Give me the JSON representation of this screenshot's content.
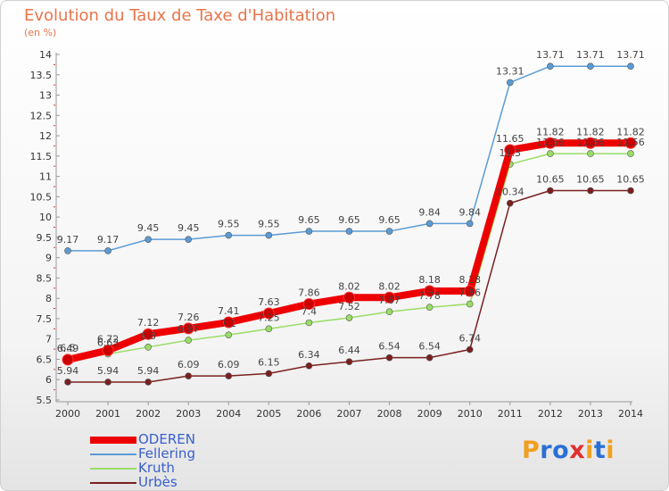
{
  "title": "Evolution du Taux de Taxe d'Habitation",
  "unit_label": "(en %)",
  "logo": {
    "text": "Proxiti",
    "letters": [
      "P",
      "r",
      "o",
      "x",
      "i",
      "t",
      "i"
    ],
    "colors": [
      "#f0a020",
      "#2b6fd6",
      "#2b6fd6",
      "#e03030",
      "#f0a020",
      "#2b6fd6",
      "#f0a020"
    ]
  },
  "chart_data": {
    "type": "line",
    "x": [
      "2000",
      "2001",
      "2002",
      "2003",
      "2004",
      "2005",
      "2006",
      "2007",
      "2008",
      "2009",
      "2010",
      "2011",
      "2012",
      "2013",
      "2014"
    ],
    "ylim": [
      5.5,
      14
    ],
    "yticks": [
      "5.5",
      "6",
      "6.5",
      "7",
      "7.5",
      "8",
      "8.5",
      "9",
      "9.5",
      "10",
      "10.5",
      "11",
      "11.5",
      "12",
      "12.5",
      "13",
      "13.5",
      "14"
    ],
    "grid": false,
    "legend_position": "bottom-left",
    "series": [
      {
        "name": "ODEREN",
        "color": "#ee0000",
        "values": [
          6.49,
          6.72,
          7.12,
          7.26,
          7.41,
          7.63,
          7.86,
          8.02,
          8.02,
          8.18,
          8.18,
          11.65,
          11.82,
          11.82,
          11.82
        ],
        "labels": [
          "6.49",
          "6.72",
          "7.12",
          "7.26",
          "7.41",
          "7.63",
          "7.86",
          "8.02",
          "8.02",
          "8.18",
          "8.18",
          "11.65",
          "11.82",
          "11.82",
          "11.82"
        ]
      },
      {
        "name": "Fellering",
        "color": "#5b9bd5",
        "values": [
          9.17,
          9.17,
          9.45,
          9.45,
          9.55,
          9.55,
          9.65,
          9.65,
          9.65,
          9.84,
          9.84,
          13.31,
          13.71,
          13.71,
          13.71
        ],
        "labels": [
          "9.17",
          "9.17",
          "9.45",
          "9.45",
          "9.55",
          "9.55",
          "9.65",
          "9.65",
          "9.65",
          "9.84",
          "9.84",
          "13.31",
          "13.71",
          "13.71",
          "13.71"
        ]
      },
      {
        "name": "Kruth",
        "color": "#99dd66",
        "values": [
          6.5,
          6.63,
          6.8,
          6.97,
          7.1,
          7.25,
          7.4,
          7.52,
          7.67,
          7.78,
          7.86,
          11.3,
          11.56,
          11.56,
          11.56
        ],
        "labels": [
          "6.5",
          "6.63",
          "6.8",
          "6.97",
          "7.1",
          "7.25",
          "7.4",
          "7.52",
          "7.67",
          "7.78",
          "7.86",
          "11.3",
          "11.56",
          "11.56",
          "11.56"
        ]
      },
      {
        "name": "Urbès",
        "color": "#7a2020",
        "values": [
          5.94,
          5.94,
          5.94,
          6.09,
          6.09,
          6.15,
          6.34,
          6.44,
          6.54,
          6.54,
          6.74,
          10.34,
          10.65,
          10.65,
          10.65
        ],
        "labels": [
          "5.94",
          "5.94",
          "5.94",
          "6.09",
          "6.09",
          "6.15",
          "6.34",
          "6.44",
          "6.54",
          "6.54",
          "6.74",
          "10.34",
          "10.65",
          "10.65",
          "10.65"
        ]
      }
    ]
  }
}
